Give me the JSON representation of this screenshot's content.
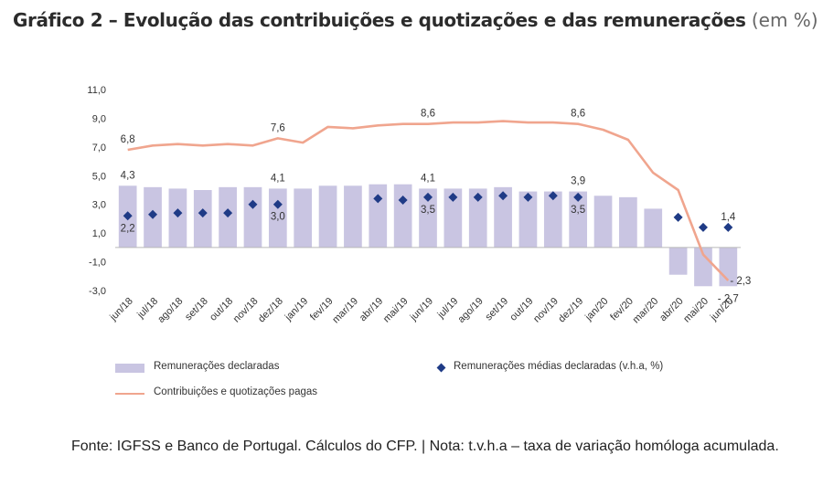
{
  "title": {
    "main": "Gráfico 2 – Evolução das contribuições e quotizações e das remunerações",
    "unit": "(em %)"
  },
  "legend": {
    "bars": "Remunerações declaradas",
    "diamonds": "Remunerações médias declaradas (v.h.a, %)",
    "line": "Contribuições e quotizações pagas"
  },
  "note": "Fonte: IGFSS e Banco de Portugal. Cálculos do CFP. | Nota: t.v.h.a – taxa de variação homóloga acumulada.",
  "colors": {
    "bars": "#c9c5e2",
    "diamonds": "#1f3b86",
    "line": "#f0a58e",
    "axis": "#b8b8b8"
  },
  "chart_data": {
    "type": "bar",
    "categories": [
      "jun/18",
      "jul/18",
      "ago/18",
      "set/18",
      "out/18",
      "nov/18",
      "dez/18",
      "jan/19",
      "fev/19",
      "mar/19",
      "abr/19",
      "mai/19",
      "jun/19",
      "jul/19",
      "ago/19",
      "set/19",
      "out/19",
      "nov/19",
      "dez/19",
      "jan/20",
      "fev/20",
      "mar/20",
      "abr/20",
      "mai/20",
      "jun/20"
    ],
    "yticks": [
      "11,0",
      "9,0",
      "7,0",
      "5,0",
      "3,0",
      "1,0",
      "-1,0",
      "-3,0"
    ],
    "ylim": [
      -3,
      11
    ],
    "series": [
      {
        "name": "Remunerações declaradas",
        "type": "bar",
        "values": [
          4.3,
          4.2,
          4.1,
          4.0,
          4.2,
          4.2,
          4.1,
          4.1,
          4.3,
          4.3,
          4.4,
          4.4,
          4.1,
          4.1,
          4.1,
          4.2,
          3.9,
          3.9,
          3.9,
          3.6,
          3.5,
          2.7,
          -1.9,
          -2.7,
          -2.7
        ]
      },
      {
        "name": "Remunerações médias declaradas (v.h.a, %)",
        "type": "scatter",
        "values": [
          2.2,
          2.3,
          2.4,
          2.4,
          2.4,
          3.0,
          3.0,
          null,
          null,
          null,
          3.4,
          3.3,
          3.5,
          3.5,
          3.5,
          3.6,
          3.5,
          3.6,
          3.5,
          null,
          null,
          null,
          2.1,
          1.4,
          1.4
        ]
      },
      {
        "name": "Contribuições e quotizações pagas",
        "type": "line",
        "values": [
          6.8,
          7.1,
          7.2,
          7.1,
          7.2,
          7.1,
          7.6,
          7.3,
          8.4,
          8.3,
          8.5,
          8.6,
          8.6,
          8.7,
          8.7,
          8.8,
          8.7,
          8.7,
          8.6,
          8.2,
          7.5,
          5.2,
          4.0,
          -0.5,
          -2.3
        ]
      }
    ],
    "data_labels": [
      {
        "text": "6,8",
        "series": 2,
        "index": 0,
        "pos": "above"
      },
      {
        "text": "4,3",
        "series": 0,
        "index": 0,
        "pos": "above"
      },
      {
        "text": "2,2",
        "series": 1,
        "index": 0,
        "pos": "below"
      },
      {
        "text": "7,6",
        "series": 2,
        "index": 6,
        "pos": "above"
      },
      {
        "text": "4,1",
        "series": 0,
        "index": 6,
        "pos": "above"
      },
      {
        "text": "3,0",
        "series": 1,
        "index": 6,
        "pos": "below"
      },
      {
        "text": "8,6",
        "series": 2,
        "index": 12,
        "pos": "above"
      },
      {
        "text": "4,1",
        "series": 0,
        "index": 12,
        "pos": "above"
      },
      {
        "text": "3,5",
        "series": 1,
        "index": 12,
        "pos": "below"
      },
      {
        "text": "8,6",
        "series": 2,
        "index": 18,
        "pos": "above"
      },
      {
        "text": "3,9",
        "series": 0,
        "index": 18,
        "pos": "above"
      },
      {
        "text": "3,5",
        "series": 1,
        "index": 18,
        "pos": "below"
      },
      {
        "text": "1,4",
        "series": 1,
        "index": 24,
        "pos": "above"
      },
      {
        "text": "- 2,3",
        "series": 2,
        "index": 24,
        "pos": "right"
      },
      {
        "text": "- 2,7",
        "series": 0,
        "index": 24,
        "pos": "below"
      }
    ]
  }
}
